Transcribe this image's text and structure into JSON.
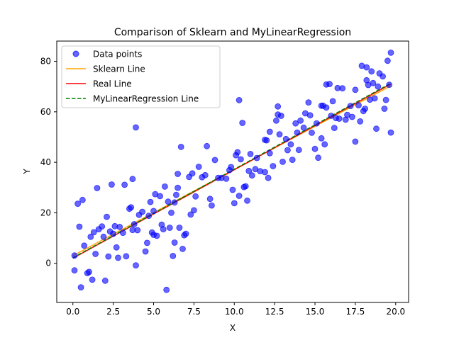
{
  "chart_data": {
    "type": "scatter",
    "title": "Comparison of Sklearn and MyLinearRegression",
    "xlabel": "X",
    "ylabel": "Y",
    "xlim": [
      -1.0,
      20.8
    ],
    "ylim": [
      -15.5,
      88.0
    ],
    "xticks": [
      0.0,
      2.5,
      5.0,
      7.5,
      10.0,
      12.5,
      15.0,
      17.5,
      20.0
    ],
    "xtick_labels": [
      "0.0",
      "2.5",
      "5.0",
      "7.5",
      "10.0",
      "12.5",
      "15.0",
      "17.5",
      "20.0"
    ],
    "yticks": [
      0,
      20,
      40,
      60,
      80
    ],
    "ytick_labels": [
      "0",
      "20",
      "40",
      "60",
      "80"
    ],
    "grid": false,
    "legend_position": "top-left",
    "series": [
      {
        "name": "Data points",
        "kind": "scatter",
        "color": "#0000ff",
        "points": [
          [
            0.1,
            3.1
          ],
          [
            0.1,
            -2.8
          ],
          [
            0.3,
            23.6
          ],
          [
            0.4,
            14.5
          ],
          [
            0.5,
            -9.5
          ],
          [
            0.6,
            25.1
          ],
          [
            0.7,
            7.0
          ],
          [
            0.9,
            -3.9
          ],
          [
            1.0,
            -3.4
          ],
          [
            1.1,
            10.5
          ],
          [
            1.2,
            -6.5
          ],
          [
            1.3,
            12.3
          ],
          [
            1.4,
            3.7
          ],
          [
            1.5,
            29.8
          ],
          [
            1.6,
            13.5
          ],
          [
            1.8,
            14.6
          ],
          [
            1.9,
            10.5
          ],
          [
            2.0,
            -6.9
          ],
          [
            2.1,
            18.4
          ],
          [
            2.2,
            2.7
          ],
          [
            2.3,
            12.6
          ],
          [
            2.4,
            31.2
          ],
          [
            2.5,
            11.7
          ],
          [
            2.6,
            14.7
          ],
          [
            2.7,
            6.3
          ],
          [
            2.8,
            2.2
          ],
          [
            2.9,
            14.4
          ],
          [
            3.1,
            12.1
          ],
          [
            3.2,
            31.1
          ],
          [
            3.3,
            2.8
          ],
          [
            3.5,
            21.6
          ],
          [
            3.6,
            22.2
          ],
          [
            3.7,
            33.4
          ],
          [
            3.7,
            13.2
          ],
          [
            3.8,
            15.5
          ],
          [
            3.9,
            53.8
          ],
          [
            3.9,
            -0.8
          ],
          [
            4.0,
            13.1
          ],
          [
            4.1,
            19.2
          ],
          [
            4.3,
            20.4
          ],
          [
            4.5,
            4.7
          ],
          [
            4.6,
            8.1
          ],
          [
            4.7,
            18.8
          ],
          [
            4.8,
            24.3
          ],
          [
            4.9,
            12.2
          ],
          [
            5.0,
            20.7
          ],
          [
            5.0,
            11.3
          ],
          [
            5.1,
            27.4
          ],
          [
            5.2,
            10.9
          ],
          [
            5.4,
            26.6
          ],
          [
            5.5,
            15.3
          ],
          [
            5.6,
            13.5
          ],
          [
            5.7,
            30.4
          ],
          [
            5.8,
            -10.5
          ],
          [
            5.9,
            24.4
          ],
          [
            6.0,
            14.1
          ],
          [
            6.1,
            20.0
          ],
          [
            6.2,
            2.9
          ],
          [
            6.3,
            24.1
          ],
          [
            6.3,
            8.2
          ],
          [
            6.4,
            27.1
          ],
          [
            6.5,
            29.9
          ],
          [
            6.5,
            35.4
          ],
          [
            6.6,
            14.1
          ],
          [
            6.7,
            46.1
          ],
          [
            6.8,
            5.7
          ],
          [
            6.9,
            11.1
          ],
          [
            7.0,
            11.7
          ],
          [
            7.2,
            34.2
          ],
          [
            7.3,
            19.3
          ],
          [
            7.4,
            35.6
          ],
          [
            7.5,
            21.0
          ],
          [
            7.6,
            26.5
          ],
          [
            7.8,
            38.2
          ],
          [
            8.0,
            34.1
          ],
          [
            8.2,
            34.9
          ],
          [
            8.3,
            46.4
          ],
          [
            8.5,
            25.5
          ],
          [
            8.6,
            22.9
          ],
          [
            8.8,
            40.9
          ],
          [
            9.0,
            33.8
          ],
          [
            9.2,
            33.8
          ],
          [
            9.5,
            33.5
          ],
          [
            9.7,
            36.9
          ],
          [
            9.8,
            38.1
          ],
          [
            9.9,
            29.1
          ],
          [
            10.0,
            23.8
          ],
          [
            10.1,
            42.8
          ],
          [
            10.2,
            44.0
          ],
          [
            10.3,
            26.7
          ],
          [
            10.3,
            64.6
          ],
          [
            10.4,
            41.2
          ],
          [
            10.5,
            55.6
          ],
          [
            10.6,
            30.2
          ],
          [
            10.7,
            30.5
          ],
          [
            10.8,
            24.8
          ],
          [
            10.9,
            36.6
          ],
          [
            11.0,
            43.3
          ],
          [
            11.1,
            34.8
          ],
          [
            11.3,
            37.3
          ],
          [
            11.4,
            41.7
          ],
          [
            11.6,
            36.5
          ],
          [
            11.9,
            36.1
          ],
          [
            11.9,
            48.9
          ],
          [
            12.0,
            48.7
          ],
          [
            12.1,
            33.8
          ],
          [
            12.2,
            43.6
          ],
          [
            12.2,
            52.1
          ],
          [
            12.4,
            38.5
          ],
          [
            12.6,
            56.5
          ],
          [
            12.7,
            58.9
          ],
          [
            12.7,
            62.1
          ],
          [
            12.8,
            51.1
          ],
          [
            12.9,
            58.4
          ],
          [
            13.0,
            40.2
          ],
          [
            13.2,
            49.2
          ],
          [
            13.3,
            44.8
          ],
          [
            13.5,
            47.1
          ],
          [
            13.6,
            41.0
          ],
          [
            13.8,
            55.4
          ],
          [
            13.9,
            51.8
          ],
          [
            14.0,
            44.9
          ],
          [
            14.1,
            56.5
          ],
          [
            14.3,
            53.7
          ],
          [
            14.4,
            59.4
          ],
          [
            14.6,
            63.7
          ],
          [
            14.7,
            58.6
          ],
          [
            14.8,
            51.7
          ],
          [
            15.0,
            45.3
          ],
          [
            15.1,
            55.4
          ],
          [
            15.2,
            41.8
          ],
          [
            15.4,
            49.5
          ],
          [
            15.4,
            62.4
          ],
          [
            15.5,
            62.4
          ],
          [
            15.6,
            47.1
          ],
          [
            15.7,
            61.7
          ],
          [
            15.7,
            70.8
          ],
          [
            15.9,
            71.0
          ],
          [
            16.0,
            58.4
          ],
          [
            16.1,
            64.2
          ],
          [
            16.2,
            53.6
          ],
          [
            16.3,
            57.5
          ],
          [
            16.4,
            69.4
          ],
          [
            16.5,
            57.3
          ],
          [
            16.7,
            69.3
          ],
          [
            16.9,
            56.9
          ],
          [
            17.0,
            58.8
          ],
          [
            17.2,
            62.3
          ],
          [
            17.3,
            58.0
          ],
          [
            17.5,
            68.7
          ],
          [
            17.5,
            48.2
          ],
          [
            17.7,
            62.6
          ],
          [
            17.8,
            56.2
          ],
          [
            17.9,
            78.2
          ],
          [
            18.0,
            60.3
          ],
          [
            18.1,
            61.2
          ],
          [
            18.2,
            77.6
          ],
          [
            18.2,
            72.5
          ],
          [
            18.3,
            70.6
          ],
          [
            18.4,
            64.8
          ],
          [
            18.5,
            76.0
          ],
          [
            18.6,
            71.4
          ],
          [
            18.7,
            65.3
          ],
          [
            18.8,
            53.3
          ],
          [
            18.9,
            70.0
          ],
          [
            19.0,
            75.2
          ],
          [
            19.2,
            74.0
          ],
          [
            19.3,
            61.2
          ],
          [
            19.4,
            64.7
          ],
          [
            19.5,
            80.2
          ],
          [
            19.6,
            70.7
          ],
          [
            19.7,
            83.4
          ],
          [
            19.7,
            51.8
          ]
        ]
      },
      {
        "name": "Sklearn Line",
        "kind": "line",
        "color": "#ffa500",
        "dash": "solid",
        "points": [
          [
            0.0,
            3.0
          ],
          [
            19.7,
            70.3
          ]
        ]
      },
      {
        "name": "Real Line",
        "kind": "line",
        "color": "#ff0000",
        "dash": "solid",
        "points": [
          [
            0.0,
            2.0
          ],
          [
            19.7,
            71.0
          ]
        ]
      },
      {
        "name": "MyLinearRegression Line",
        "kind": "line",
        "color": "#008000",
        "dash": "dashed",
        "points": [
          [
            0.0,
            2.2
          ],
          [
            19.7,
            71.3
          ]
        ]
      }
    ]
  }
}
